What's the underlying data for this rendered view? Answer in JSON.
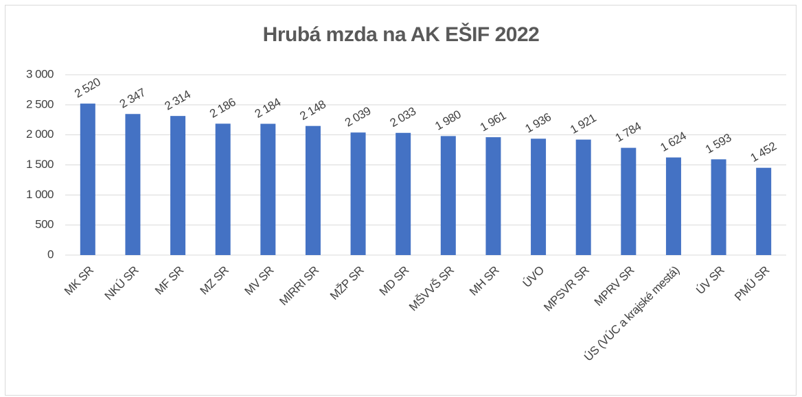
{
  "chart_data": {
    "type": "bar",
    "title": "Hrubá mzda na AK EŠIF 2022",
    "categories": [
      "MK SR",
      "NKÚ SR",
      "MF SR",
      "MZ SR",
      "MV SR",
      "MIRRI SR",
      "MŽP SR",
      "MD SR",
      "MŠVVŠ SR",
      "MH SR",
      "ÚVO",
      "MPSVR SR",
      "MPRV SR",
      "ÚS (VÚC a krajské mestá)",
      "ÚV SR",
      "PMÚ SR"
    ],
    "values": [
      2520,
      2347,
      2314,
      2186,
      2184,
      2148,
      2039,
      2033,
      1980,
      1961,
      1936,
      1921,
      1784,
      1624,
      1593,
      1452
    ],
    "value_labels": [
      "2 520",
      "2 347",
      "2 314",
      "2 186",
      "2 184",
      "2 148",
      "2 039",
      "2 033",
      "1 980",
      "1 961",
      "1 936",
      "1 921",
      "1 784",
      "1 624",
      "1 593",
      "1 452"
    ],
    "color": "#4472c4",
    "ylim": [
      0,
      3000
    ],
    "yticks": [
      0,
      500,
      {
        "value": 1000,
        "label": "1 000"
      },
      {
        "value": 1500,
        "label": "1 500"
      },
      {
        "value": 2000,
        "label": "2 000"
      },
      {
        "value": 2500,
        "label": "2 500"
      },
      {
        "value": 3000,
        "label": "3 000"
      }
    ],
    "grid": true
  }
}
